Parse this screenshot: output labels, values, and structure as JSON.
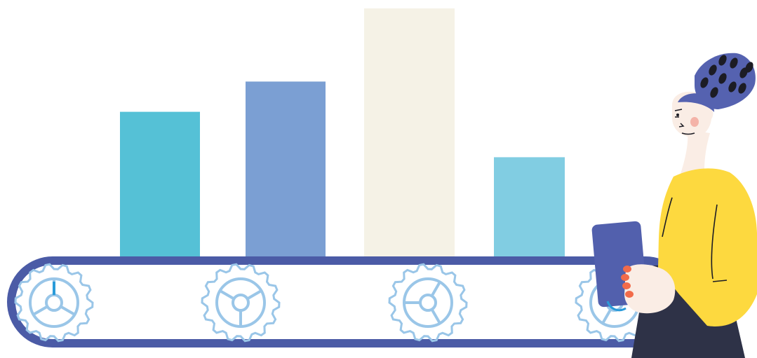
{
  "illustration": {
    "description_free": true,
    "bars": {
      "count": 4,
      "relative_heights": [
        0.59,
        0.71,
        1.0,
        0.41
      ],
      "colors": [
        "#55C1D6",
        "#7B9FD3",
        "#F5F2E6",
        "#81CDE2"
      ]
    },
    "palette": {
      "conveyor_belt": "#4B5BA6",
      "gear": "#9AC6E8",
      "gear_accent": "#2A9BD9",
      "shirt": "#FDD93F",
      "pants": "#2E3247",
      "skin": "#FAEDE5",
      "hair": "#5562B0",
      "hair_dots": "#1C1C24",
      "tablet": "#5260AD",
      "nails": "#F26B4A",
      "cheek": "#F4B3A8",
      "outline": "#1C1C24"
    },
    "gears": {
      "count": 4
    }
  }
}
